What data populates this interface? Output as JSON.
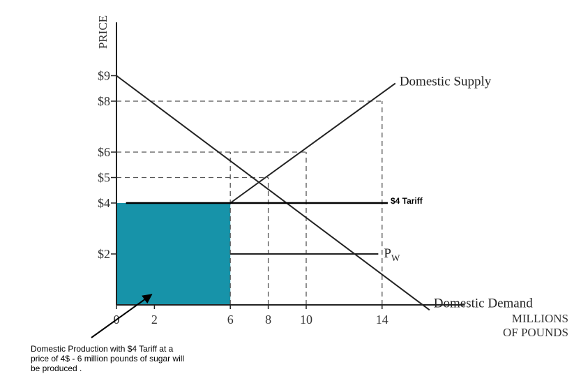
{
  "chart_data": {
    "type": "line",
    "title": "",
    "xlabel": "MILLIONS OF POUNDS",
    "ylabel": "PRICE",
    "xlim": [
      0,
      18
    ],
    "ylim": [
      0,
      9.9
    ],
    "x_ticks": [
      {
        "value": 0,
        "label": "0"
      },
      {
        "value": 2,
        "label": "2"
      },
      {
        "value": 6,
        "label": "6"
      },
      {
        "value": 8,
        "label": "8"
      },
      {
        "value": 10,
        "label": "10"
      },
      {
        "value": 14,
        "label": "14"
      }
    ],
    "y_ticks": [
      {
        "value": 2,
        "label": "$2"
      },
      {
        "value": 4,
        "label": "$4"
      },
      {
        "value": 5,
        "label": "$5"
      },
      {
        "value": 6,
        "label": "$6"
      },
      {
        "value": 8,
        "label": "$8"
      },
      {
        "value": 9,
        "label": "$9"
      }
    ],
    "series": [
      {
        "name": "Domestic Supply",
        "x": [
          6,
          14.7
        ],
        "y": [
          4,
          8.7
        ]
      },
      {
        "name": "Domestic Demand",
        "x": [
          0,
          16.5
        ],
        "y": [
          9,
          -0.2
        ]
      }
    ],
    "price_lines": [
      {
        "label": "$4 Tariff",
        "y": 4,
        "x": [
          0.5,
          14.3
        ]
      },
      {
        "label_main": "P",
        "label_sub": "W",
        "y": 2,
        "x": [
          6,
          13.8
        ]
      }
    ],
    "guides": [
      {
        "x": [
          0,
          14
        ],
        "y": [
          8,
          8
        ]
      },
      {
        "x": [
          0,
          10
        ],
        "y": [
          6,
          6
        ]
      },
      {
        "x": [
          0,
          8
        ],
        "y": [
          5,
          5
        ]
      },
      {
        "x": [
          6,
          6
        ],
        "y": [
          0,
          6
        ]
      },
      {
        "x": [
          8,
          8
        ],
        "y": [
          0,
          5
        ]
      },
      {
        "x": [
          10,
          10
        ],
        "y": [
          0,
          6
        ]
      },
      {
        "x": [
          14,
          14
        ],
        "y": [
          0,
          8
        ]
      }
    ],
    "shaded_region": {
      "x": [
        0,
        6
      ],
      "y": [
        0,
        4
      ],
      "color": "#1793a9"
    },
    "annotation": {
      "text": "Domestic Production with $4 Tariff at a price of 4$ - 6 million pounds of sugar will be produced .",
      "arrow_to": {
        "x": 2,
        "y": 0.3
      }
    },
    "grid": false,
    "legend": "none"
  }
}
